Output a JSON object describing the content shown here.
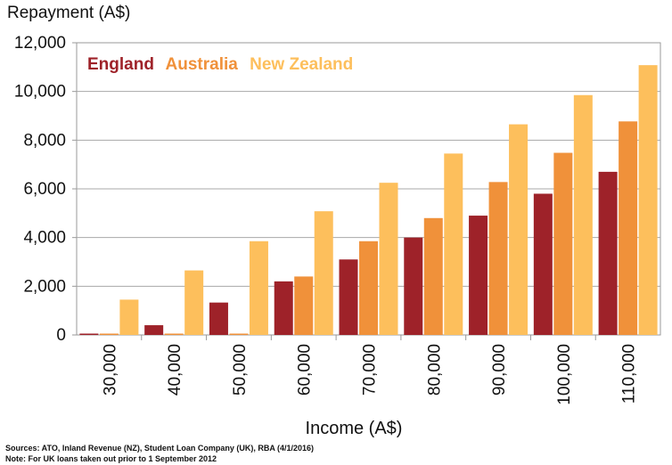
{
  "chart_data": {
    "type": "bar",
    "ylabel": "Repayment (A$)",
    "xlabel": "Income (A$)",
    "categories": [
      "30,000",
      "40,000",
      "50,000",
      "60,000",
      "70,000",
      "80,000",
      "90,000",
      "100,000",
      "110,000"
    ],
    "series": [
      {
        "name": "England",
        "color": "#9e2229",
        "values": [
          0,
          400,
          1330,
          2200,
          3100,
          4000,
          4900,
          5800,
          6700
        ]
      },
      {
        "name": "Australia",
        "color": "#f0913a",
        "values": [
          0,
          0,
          0,
          2400,
          3850,
          4800,
          6280,
          7480,
          8770
        ]
      },
      {
        "name": "New Zealand",
        "color": "#fdbf5c",
        "values": [
          1450,
          2650,
          3850,
          5080,
          6250,
          7450,
          8650,
          9850,
          11080
        ]
      }
    ],
    "ylim": [
      0,
      12000
    ],
    "yticks": [
      "0",
      "2,000",
      "4,000",
      "6,000",
      "8,000",
      "10,000",
      "12,000"
    ],
    "grid": true,
    "legend_position": "top-left"
  },
  "sources_text": "Sources: ATO, Inland Revenue (NZ), Student Loan Company (UK), RBA (4/1/2016)",
  "note_text": "Note: For UK loans taken out prior to 1 September 2012"
}
